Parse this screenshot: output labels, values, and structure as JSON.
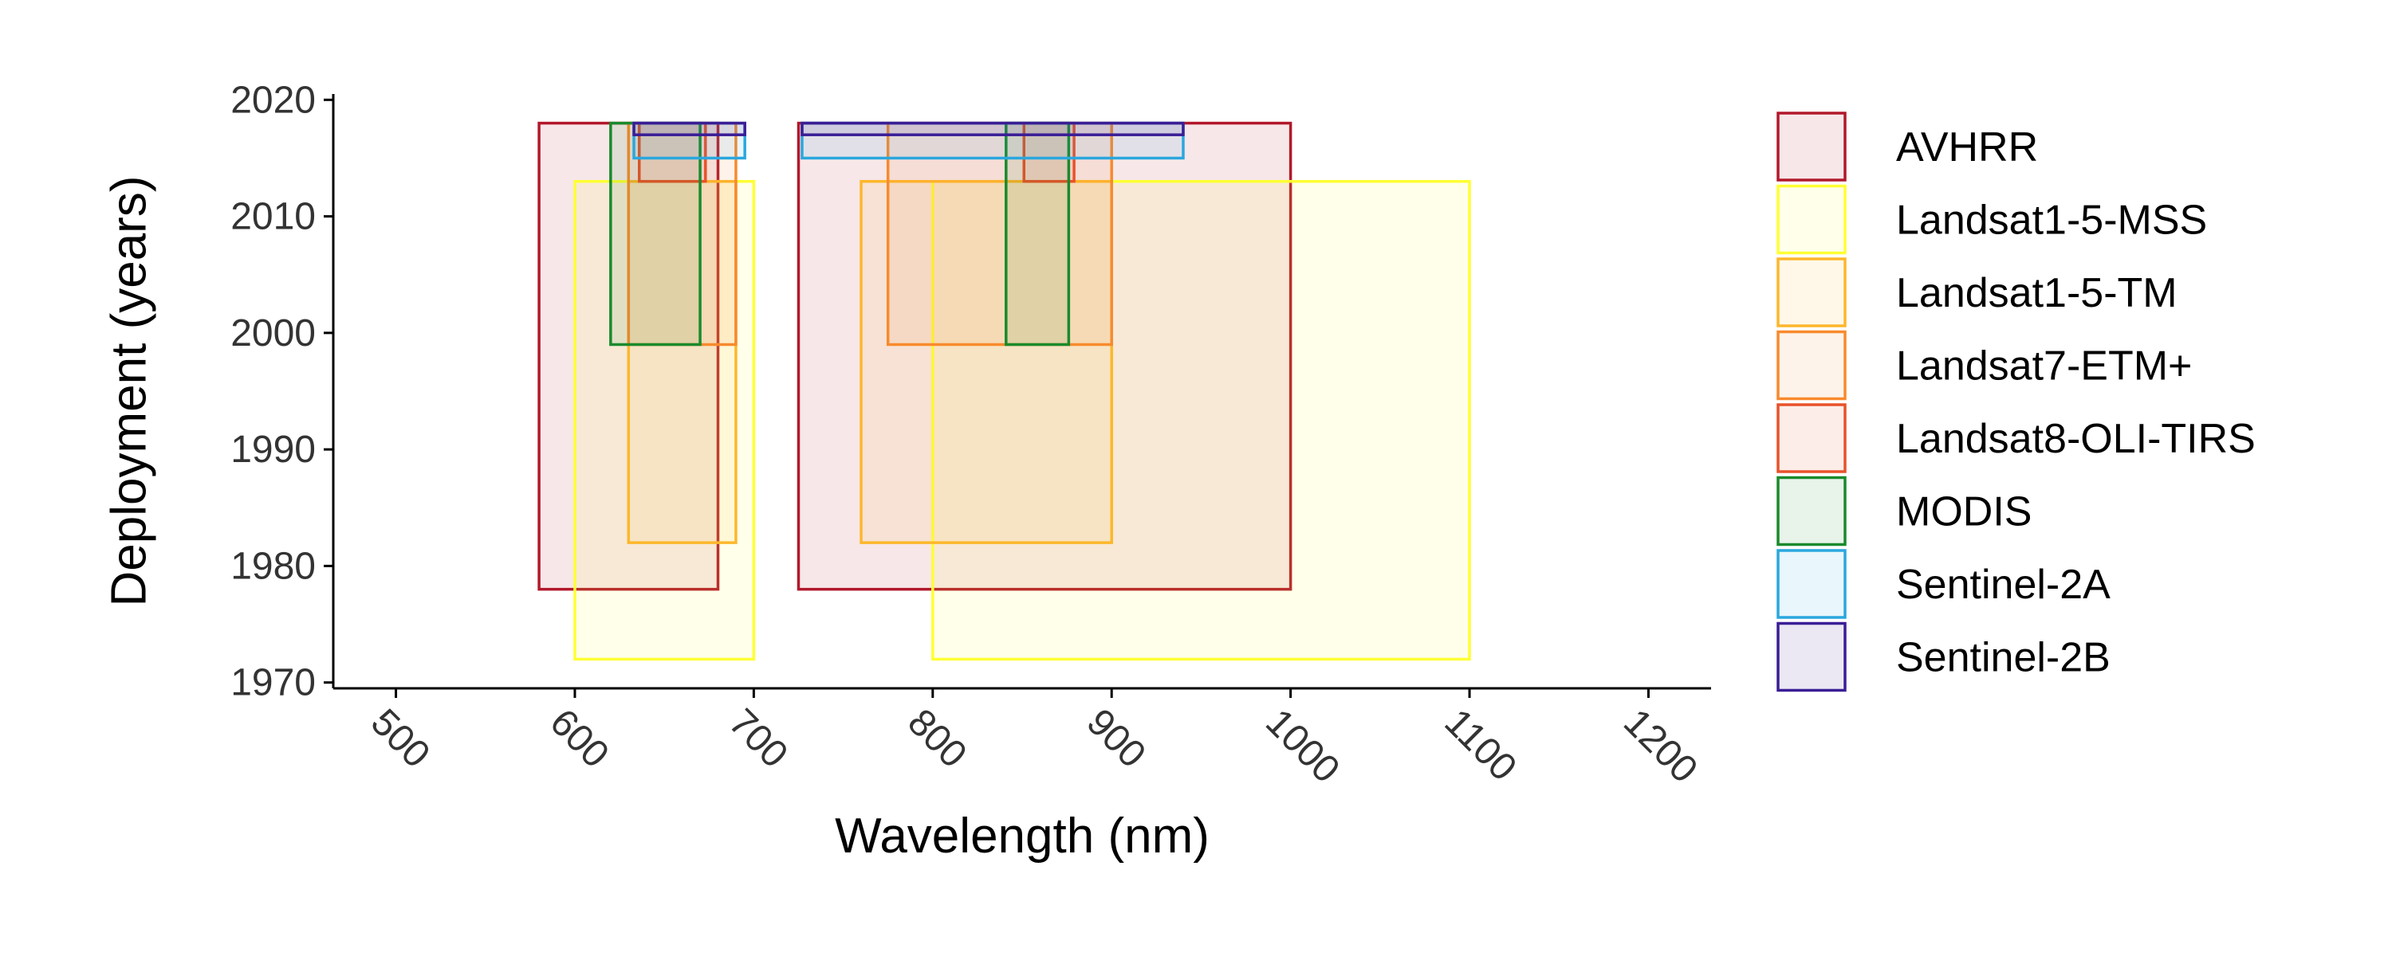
{
  "chart_data": {
    "type": "rect",
    "xlabel": "Wavelength (nm)",
    "ylabel": "Deployment (years)",
    "xlim": [
      465,
      1235
    ],
    "ylim": [
      1969.5,
      2020.5
    ],
    "x_ticks": [
      500,
      600,
      700,
      800,
      900,
      1000,
      1100,
      1200
    ],
    "y_ticks": [
      1970,
      1980,
      1990,
      2000,
      2010,
      2020
    ],
    "x_tick_labels": [
      "500",
      "600",
      "700",
      "800",
      "900",
      "1000",
      "1100",
      "1200"
    ],
    "y_tick_labels": [
      "1970",
      "1980",
      "1990",
      "2000",
      "2010",
      "2020"
    ],
    "legend_position": "right",
    "series": [
      {
        "name": "AVHRR",
        "color": "#B2182B",
        "rects": [
          {
            "x_start": 580,
            "x_end": 680,
            "year_start": 1978,
            "year_end": 2018
          },
          {
            "x_start": 725,
            "x_end": 1000,
            "year_start": 1978,
            "year_end": 2018
          }
        ]
      },
      {
        "name": "Landsat1-5-MSS",
        "color": "#FFFF33",
        "rects": [
          {
            "x_start": 600,
            "x_end": 700,
            "year_start": 1972,
            "year_end": 2013
          },
          {
            "x_start": 800,
            "x_end": 1100,
            "year_start": 1972,
            "year_end": 2013
          }
        ]
      },
      {
        "name": "Landsat1-5-TM",
        "color": "#FDB72C",
        "rects": [
          {
            "x_start": 630,
            "x_end": 690,
            "year_start": 1982,
            "year_end": 2013
          },
          {
            "x_start": 760,
            "x_end": 900,
            "year_start": 1982,
            "year_end": 2013
          }
        ]
      },
      {
        "name": "Landsat7-ETM+",
        "color": "#F88A2D",
        "rects": [
          {
            "x_start": 630,
            "x_end": 690,
            "year_start": 1999,
            "year_end": 2018
          },
          {
            "x_start": 775,
            "x_end": 900,
            "year_start": 1999,
            "year_end": 2018
          }
        ]
      },
      {
        "name": "Landsat8-OLI-TIRS",
        "color": "#E8522A",
        "rects": [
          {
            "x_start": 636,
            "x_end": 673,
            "year_start": 2013,
            "year_end": 2018
          },
          {
            "x_start": 851,
            "x_end": 879,
            "year_start": 2013,
            "year_end": 2018
          }
        ]
      },
      {
        "name": "MODIS",
        "color": "#1A8A2C",
        "rects": [
          {
            "x_start": 620,
            "x_end": 670,
            "year_start": 1999,
            "year_end": 2018
          },
          {
            "x_start": 841,
            "x_end": 876,
            "year_start": 1999,
            "year_end": 2018
          }
        ]
      },
      {
        "name": "Sentinel-2A",
        "color": "#2AA7DE",
        "rects": [
          {
            "x_start": 633,
            "x_end": 695,
            "year_start": 2015,
            "year_end": 2018
          },
          {
            "x_start": 727,
            "x_end": 940,
            "year_start": 2015,
            "year_end": 2018
          }
        ]
      },
      {
        "name": "Sentinel-2B",
        "color": "#3A1E96",
        "rects": [
          {
            "x_start": 633,
            "x_end": 695,
            "year_start": 2017,
            "year_end": 2018
          },
          {
            "x_start": 727,
            "x_end": 940,
            "year_start": 2017,
            "year_end": 2018
          }
        ]
      }
    ]
  }
}
